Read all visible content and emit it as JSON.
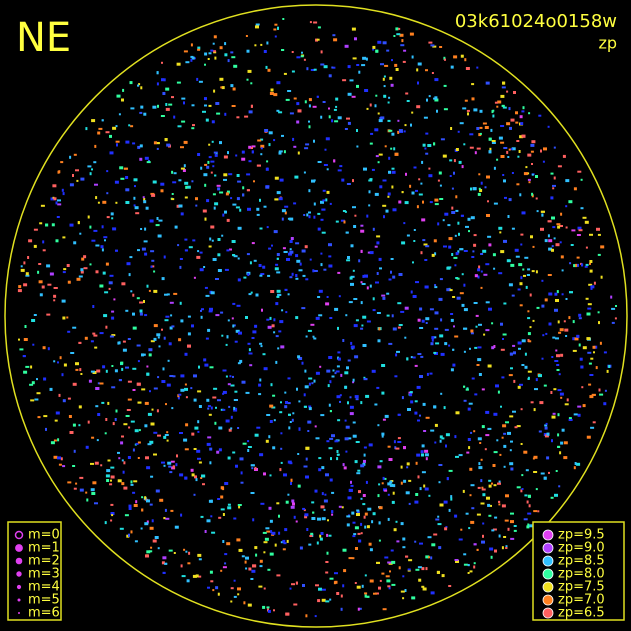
{
  "header": {
    "title": "NE",
    "frame_id": "03k61024o0158w",
    "parameter": "zp"
  },
  "legend_m": {
    "items": [
      {
        "label": "m=0"
      },
      {
        "label": "m=1"
      },
      {
        "label": "m=2"
      },
      {
        "label": "m=3"
      },
      {
        "label": "m=4"
      },
      {
        "label": "m=5"
      },
      {
        "label": "m=6"
      }
    ]
  },
  "legend_zp": {
    "items": [
      {
        "label": "zp=9.5",
        "color": "#e040f0"
      },
      {
        "label": "zp=9.0",
        "color": "#b040ff"
      },
      {
        "label": "zp=8.5",
        "color": "#30c0ff"
      },
      {
        "label": "zp=8.0",
        "color": "#30ffa0"
      },
      {
        "label": "zp=7.5",
        "color": "#f0e020"
      },
      {
        "label": "zp=7.0",
        "color": "#ff8020"
      },
      {
        "label": "zp=6.5",
        "color": "#ff6060"
      }
    ]
  }
}
